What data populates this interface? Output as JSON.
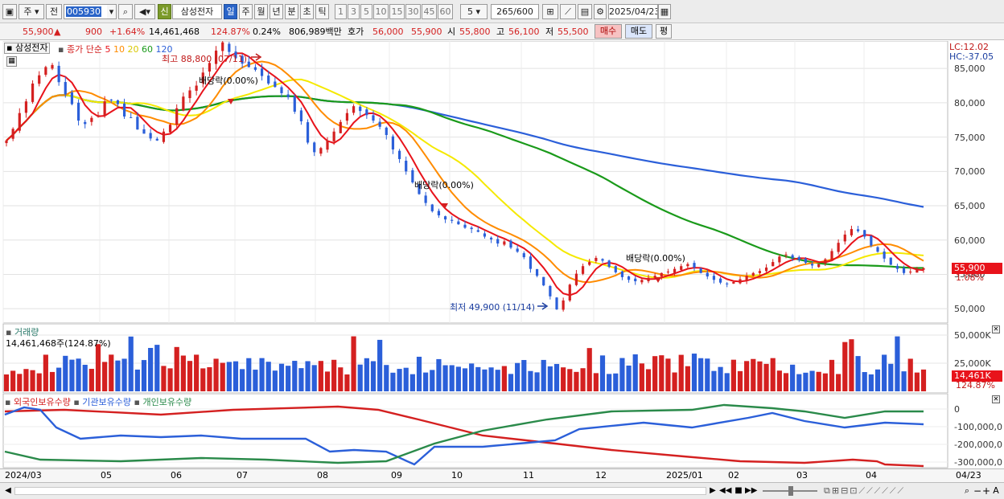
{
  "toolbar": {
    "period_main": "주",
    "prev_label": "전",
    "code": "005930",
    "stock_name": "삼성전자",
    "credit_badge": "신",
    "period_tabs": [
      "일",
      "주",
      "월",
      "년",
      "분",
      "초",
      "틱"
    ],
    "active_tab": "일",
    "interval_buttons": [
      "1",
      "3",
      "5",
      "10",
      "15",
      "30",
      "45",
      "60"
    ],
    "interval_value": "5",
    "count_display": "265/600",
    "date": "2025/04/23"
  },
  "quote": {
    "price": "55,900",
    "change": "900",
    "change_pct": "+1.64%",
    "volume": "14,461,468",
    "volume_ratio": "124.87%",
    "turnover": "0.24%",
    "amount": "806,989백만",
    "ask_label": "호가",
    "ask": "56,000",
    "bid": "55,900",
    "open_label": "시",
    "open": "55,800",
    "high_label": "고",
    "high": "56,100",
    "low_label": "저",
    "low": "55,500",
    "buy_button": "매수",
    "sell_button": "매도",
    "eval_button": "평"
  },
  "price_pane": {
    "title": "삼성전자",
    "legend_prefix": "종가 단순",
    "legend_periods": [
      "5",
      "10",
      "20",
      "60",
      "120"
    ],
    "legend_colors": [
      "#e8131b",
      "#ff8c00",
      "#f5e900",
      "#1a9a1a",
      "#2b5fd9"
    ],
    "lc": "LC:12.02",
    "hc": "HC:-37.05",
    "current_price_tag": "55,900",
    "current_pct_tag": "1.08%",
    "high_annotation": "최고 88,800 (07/11)",
    "low_annotation": "최저 49,900 (11/14)",
    "dividend_label": "배당락(0.00%)"
  },
  "volume_pane": {
    "title": "거래량",
    "value_label": "14,461,468주(124.87%)",
    "current_tag": "14,461K",
    "current_pct": "124.87%"
  },
  "holdings_pane": {
    "labels": [
      "외국인보유수량",
      "기관보유수량",
      "개인보유수량"
    ],
    "colors": [
      "#d42020",
      "#2b5fd9",
      "#2a8a4a"
    ]
  },
  "bottom_bar": {
    "dates": [
      "2024/03",
      "05",
      "06",
      "07",
      "08",
      "09",
      "10",
      "11",
      "12",
      "2025/01",
      "02",
      "03",
      "04"
    ],
    "right_date": "04/23"
  },
  "chart_data": [
    {
      "type": "line",
      "title": "",
      "y_ticks": [
        "85,000",
        "80,000",
        "75,000",
        "70,000",
        "65,000",
        "60,000",
        "55,000",
        "50,000"
      ],
      "ylim": [
        48500,
        89000
      ],
      "n_days": 265,
      "series": [
        {
          "name": "종가",
          "values": [
            74500,
            76200,
            78500,
            80200,
            82800,
            84000,
            85200,
            85500,
            83000,
            81200,
            79800,
            77400,
            76900,
            77800,
            78200,
            80200,
            80400,
            79800,
            78000,
            77800,
            76100,
            75500,
            74800,
            74500,
            75800,
            76800,
            79200,
            80900,
            81800,
            82500,
            84400,
            85800,
            87600,
            88800,
            87400,
            86500,
            85700,
            85200,
            84800,
            83900,
            82800,
            82300,
            81400,
            80800,
            78700,
            77300,
            74200,
            72800,
            73400,
            74500,
            75800,
            77200,
            78500,
            79500,
            78800,
            78200,
            77400,
            76500,
            75300,
            73200,
            71800,
            70000,
            68400,
            66700,
            65400,
            64200,
            63600,
            63000,
            62800,
            62300,
            61800,
            61600,
            61200,
            60500,
            60100,
            59500,
            59800,
            58900,
            58300,
            57500,
            55800,
            54800,
            53400,
            51800,
            49900,
            51200,
            53500,
            55100,
            56200,
            56800,
            57400,
            57000,
            56100,
            55300,
            54600,
            54200,
            54000,
            54200,
            54500,
            54800,
            55200,
            55400,
            55800,
            56200,
            56500,
            56000,
            55200,
            54700,
            54200,
            53800,
            53600,
            53900,
            54300,
            54800,
            55200,
            55500,
            56000,
            56800,
            57600,
            57900,
            57400,
            57100,
            56700,
            56300,
            56500,
            57200,
            58400,
            59600,
            60800,
            61600,
            61300,
            60500,
            59200,
            58300,
            57300,
            56400,
            55800,
            55200,
            55400,
            55700,
            55900
          ]
        }
      ],
      "dividend_markers": [
        "2024/06",
        "2024/09",
        "2024/12"
      ]
    },
    {
      "type": "bar",
      "title": "거래량",
      "y_ticks": [
        "50,000K",
        "25,000K"
      ],
      "ylim": [
        0,
        60000000
      ]
    },
    {
      "type": "line",
      "title": "",
      "y_ticks": [
        "0",
        "-100,000,0",
        "-200,000,0",
        "-300,000,0"
      ],
      "series": [
        {
          "name": "외국인보유수량"
        },
        {
          "name": "기관보유수량"
        },
        {
          "name": "개인보유수량"
        }
      ]
    }
  ]
}
